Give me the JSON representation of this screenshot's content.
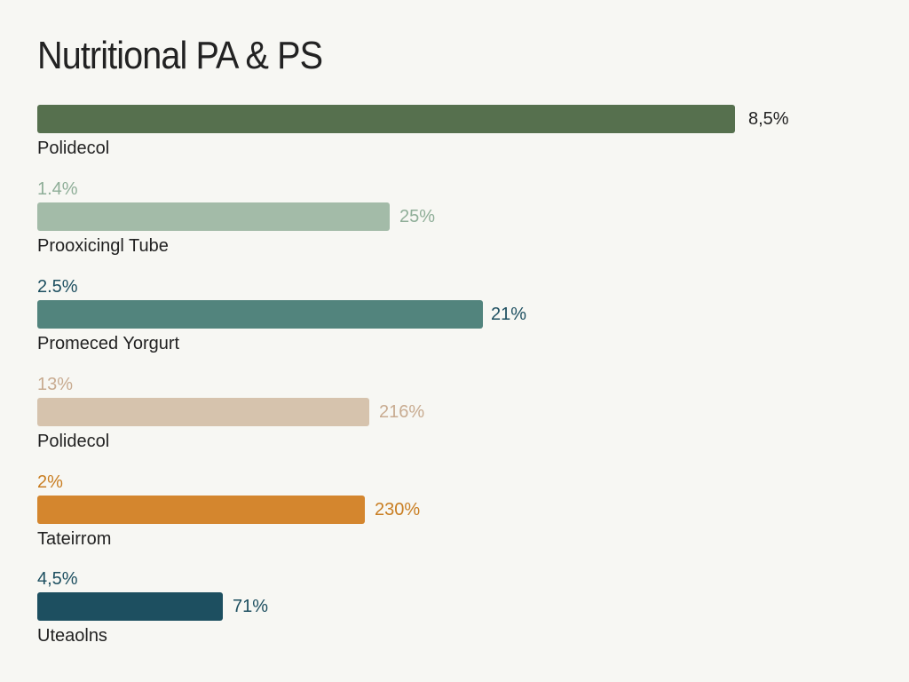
{
  "title": "Nutritional PA & PS",
  "rows": [
    {
      "top_label": null,
      "value_label": "8,5%",
      "name": "Polidecol",
      "color": "#56704e",
      "label_color": "#222222"
    },
    {
      "top_label": "1.4%",
      "value_label": "25%",
      "name": "Prooxicingl Tube",
      "color": "#a3bba8",
      "label_color": "#8fae98"
    },
    {
      "top_label": "2.5%",
      "value_label": "21%",
      "name": "Promeced Yorgurt",
      "color": "#52847d",
      "label_color": "#1d4f60"
    },
    {
      "top_label": "13%",
      "value_label": "216%",
      "name": "Polidecol",
      "color": "#d6c3ad",
      "label_color": "#c8ab90"
    },
    {
      "top_label": "2%",
      "value_label": "230%",
      "name": "Tateirrom",
      "color": "#d4862e",
      "label_color": "#c97e22"
    },
    {
      "top_label": "4,5%",
      "value_label": "71%",
      "name": "Uteaolns",
      "color": "#1d4f60",
      "label_color": "#1d4f60"
    }
  ]
}
